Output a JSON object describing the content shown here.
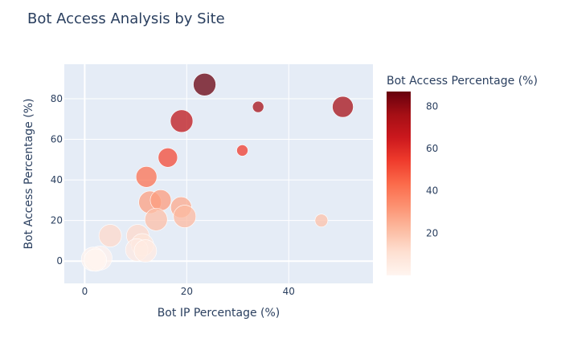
{
  "chart_data": {
    "type": "scatter",
    "title": "Bot Access Analysis by Site",
    "xlabel": "Bot IP Percentage (%)",
    "ylabel": "Bot Access Percentage (%)",
    "xlim": [
      -4,
      56.5
    ],
    "ylim": [
      -11,
      97
    ],
    "xticks": [
      0,
      20,
      40
    ],
    "yticks": [
      0,
      20,
      40,
      60,
      80
    ],
    "grid": true,
    "colorbar": {
      "title": "Bot Access Percentage (%)",
      "range": [
        0,
        87
      ],
      "ticks": [
        20,
        40,
        60,
        80
      ],
      "colorscale": "Reds"
    },
    "size_scale": "bubble",
    "points": [
      {
        "x": 23.5,
        "y": 87,
        "size": 14
      },
      {
        "x": 34,
        "y": 76,
        "size": 7
      },
      {
        "x": 50.6,
        "y": 76,
        "size": 13
      },
      {
        "x": 19,
        "y": 69,
        "size": 14
      },
      {
        "x": 30.9,
        "y": 54.5,
        "size": 7
      },
      {
        "x": 16.3,
        "y": 51,
        "size": 12
      },
      {
        "x": 12.1,
        "y": 41.5,
        "size": 13
      },
      {
        "x": 12.8,
        "y": 29,
        "size": 14
      },
      {
        "x": 14.9,
        "y": 30,
        "size": 13
      },
      {
        "x": 18.9,
        "y": 26.5,
        "size": 13
      },
      {
        "x": 19.6,
        "y": 22,
        "size": 14
      },
      {
        "x": 14,
        "y": 20.5,
        "size": 14
      },
      {
        "x": 46.4,
        "y": 20,
        "size": 8
      },
      {
        "x": 5,
        "y": 12.5,
        "size": 14
      },
      {
        "x": 10.4,
        "y": 12.5,
        "size": 14
      },
      {
        "x": 11.3,
        "y": 8,
        "size": 14
      },
      {
        "x": 10.2,
        "y": 5.5,
        "size": 14
      },
      {
        "x": 11.9,
        "y": 5,
        "size": 14
      },
      {
        "x": 3,
        "y": 1.5,
        "size": 15
      },
      {
        "x": 1.7,
        "y": 1,
        "size": 15
      },
      {
        "x": 2.1,
        "y": 0.5,
        "size": 14
      }
    ]
  }
}
